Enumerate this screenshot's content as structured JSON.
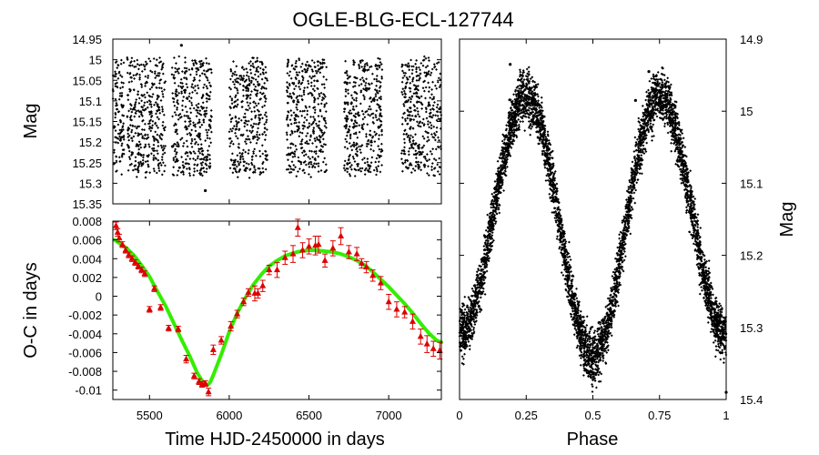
{
  "title": "OGLE-BLG-ECL-127744",
  "chart_data": [
    {
      "type": "scatter",
      "panel": "light-curve",
      "xlabel": "",
      "ylabel": "Mag",
      "xlim": [
        5270,
        7330
      ],
      "ylim": [
        14.95,
        15.35
      ],
      "y_inverted": true,
      "yticks": [
        "14.95",
        "15",
        "15.05",
        "15.1",
        "15.15",
        "15.2",
        "15.25",
        "15.3",
        "15.35"
      ],
      "y_tick_values": [
        14.95,
        15.0,
        15.05,
        15.1,
        15.15,
        15.2,
        15.25,
        15.3,
        15.35
      ],
      "season_ranges": [
        [
          5270,
          5340
        ],
        [
          5360,
          5600
        ],
        [
          5640,
          5890
        ],
        [
          6000,
          6240
        ],
        [
          6360,
          6610
        ],
        [
          6720,
          6960
        ],
        [
          7080,
          7330
        ]
      ],
      "mag_range": [
        15.0,
        15.28
      ],
      "outliers": [
        {
          "x": 5700,
          "y": 14.965
        },
        {
          "x": 5850,
          "y": 15.318
        }
      ]
    },
    {
      "type": "scatter",
      "panel": "o-c",
      "xlabel": "Time HJD-2450000 in days",
      "ylabel": "O-C in days",
      "xlim": [
        5270,
        7330
      ],
      "ylim": [
        -0.011,
        0.008
      ],
      "xticks": [
        "5500",
        "6000",
        "6500",
        "7000"
      ],
      "x_tick_values": [
        5500,
        6000,
        6500,
        7000
      ],
      "yticks": [
        "0.008",
        "0.006",
        "0.004",
        "0.002",
        "0",
        "-0.002",
        "-0.004",
        "-0.006",
        "-0.008",
        "-0.01"
      ],
      "y_tick_values": [
        0.008,
        0.006,
        0.004,
        0.002,
        0,
        -0.002,
        -0.004,
        -0.006,
        -0.008,
        -0.01
      ],
      "series": [
        {
          "name": "O-C measurements",
          "color": "#dd0000",
          "marker": "triangle",
          "x": [
            5290,
            5300,
            5310,
            5330,
            5350,
            5370,
            5390,
            5410,
            5430,
            5450,
            5470,
            5500,
            5530,
            5570,
            5620,
            5680,
            5730,
            5780,
            5810,
            5830,
            5850,
            5870,
            5900,
            5950,
            6010,
            6050,
            6090,
            6120,
            6160,
            6180,
            6210,
            6250,
            6300,
            6350,
            6400,
            6430,
            6460,
            6500,
            6540,
            6560,
            6600,
            6650,
            6700,
            6750,
            6800,
            6830,
            6860,
            6900,
            6950,
            7000,
            7050,
            7100,
            7150,
            7200,
            7240,
            7280,
            7320
          ],
          "y": [
            0.0075,
            0.0068,
            0.0062,
            0.0055,
            0.0049,
            0.0044,
            0.004,
            0.0036,
            0.0032,
            0.0028,
            0.0024,
            -0.0014,
            0.0008,
            -0.0012,
            -0.0034,
            -0.0035,
            -0.0067,
            -0.0085,
            -0.0091,
            -0.0094,
            -0.0093,
            -0.0102,
            -0.0057,
            -0.0047,
            -0.0032,
            -0.0019,
            -0.0006,
            0.0004,
            0.0003,
            0.0003,
            0.0011,
            0.0028,
            0.0028,
            0.0041,
            0.0045,
            0.0073,
            0.0049,
            0.0053,
            0.0054,
            0.0055,
            0.0038,
            0.0051,
            0.0064,
            0.0047,
            0.0045,
            0.0035,
            0.0031,
            0.0022,
            0.0014,
            -0.0006,
            -0.0014,
            -0.0017,
            -0.0027,
            -0.0043,
            -0.0051,
            -0.0056,
            -0.0058
          ],
          "err": [
            0.0004,
            0.0004,
            0.0004,
            0.0003,
            0.0003,
            0.0003,
            0.0003,
            0.0003,
            0.0003,
            0.0003,
            0.0003,
            0.0003,
            0.0003,
            0.0003,
            0.0003,
            0.0003,
            0.0004,
            0.0003,
            0.0003,
            0.0003,
            0.0003,
            0.0004,
            0.0005,
            0.0004,
            0.0005,
            0.0004,
            0.0004,
            0.0004,
            0.0008,
            0.0005,
            0.0006,
            0.0005,
            0.0008,
            0.0007,
            0.0009,
            0.0009,
            0.0008,
            0.0008,
            0.001,
            0.0009,
            0.0007,
            0.0008,
            0.0009,
            0.0007,
            0.0007,
            0.0005,
            0.0006,
            0.0006,
            0.0007,
            0.0008,
            0.0008,
            0.0006,
            0.0008,
            0.0008,
            0.0009,
            0.0008,
            0.0009
          ]
        },
        {
          "name": "LTTE fit",
          "color": "#33ee00",
          "type": "line",
          "x": [
            5280,
            5350,
            5400,
            5450,
            5500,
            5550,
            5600,
            5650,
            5700,
            5750,
            5800,
            5830,
            5860,
            5880,
            5900,
            5950,
            6000,
            6050,
            6100,
            6150,
            6200,
            6250,
            6300,
            6350,
            6400,
            6450,
            6500,
            6550,
            6600,
            6650,
            6700,
            6750,
            6800,
            6850,
            6900,
            6950,
            7000,
            7050,
            7100,
            7150,
            7200,
            7250,
            7300,
            7330
          ],
          "y": [
            0.006,
            0.0052,
            0.0044,
            0.0033,
            0.0021,
            0.0005,
            -0.001,
            -0.0028,
            -0.0046,
            -0.0063,
            -0.0082,
            -0.009,
            -0.0095,
            -0.0092,
            -0.0084,
            -0.0062,
            -0.0038,
            -0.0018,
            -0.0002,
            0.0012,
            0.0023,
            0.0032,
            0.0038,
            0.0043,
            0.0046,
            0.0048,
            0.0049,
            0.0049,
            0.0048,
            0.0047,
            0.0045,
            0.0042,
            0.0038,
            0.0033,
            0.0026,
            0.0018,
            0.001,
            0.0001,
            -0.0008,
            -0.0018,
            -0.0029,
            -0.0039,
            -0.0047,
            -0.0049
          ]
        }
      ]
    },
    {
      "type": "scatter",
      "panel": "phased",
      "xlabel": "Phase",
      "ylabel": "Mag",
      "xlim": [
        0,
        1
      ],
      "ylim": [
        14.9,
        15.4
      ],
      "y_inverted": true,
      "xticks": [
        "0",
        "0.25",
        "0.5",
        "0.75",
        "1"
      ],
      "x_tick_values": [
        0,
        0.25,
        0.5,
        0.75,
        1
      ],
      "yticks": [
        "14.9",
        "15",
        "15.1",
        "15.2",
        "15.3",
        "15.4"
      ],
      "y_tick_values": [
        14.9,
        15.0,
        15.1,
        15.2,
        15.3,
        15.4
      ],
      "model": {
        "max_brightness_mag": 14.98,
        "primary_min_mag": 15.34,
        "secondary_min_mag": 15.31,
        "scatter_width_mag": 0.035
      },
      "outliers": [
        {
          "x": 0.19,
          "y": 14.935
        },
        {
          "x": 0.66,
          "y": 14.985
        },
        {
          "x": 0.71,
          "y": 14.945
        },
        {
          "x": 1.0,
          "y": 15.39
        }
      ]
    }
  ]
}
